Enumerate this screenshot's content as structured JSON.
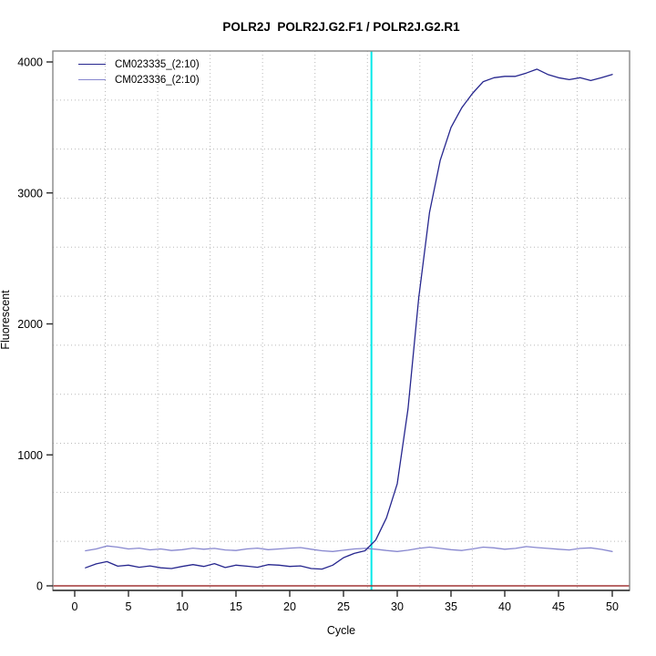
{
  "chart_data": {
    "type": "line",
    "title": "POLR2J  POLR2J.G2.F1 / POLR2J.G2.R1",
    "xlabel": "Cycle",
    "ylabel": "Fluorescent",
    "x_axis": {
      "min": 0,
      "max": 50,
      "ticks": [
        0,
        5,
        10,
        15,
        20,
        25,
        30,
        35,
        40,
        45,
        50
      ]
    },
    "y_axis": {
      "min": 0,
      "max": 4000,
      "ticks": [
        0,
        1000,
        2000,
        3000,
        4000
      ]
    },
    "grid": {
      "style": "dotted",
      "color": "#b9b9b9",
      "x_divisions": 11,
      "y_divisions": 11
    },
    "x": [
      1,
      2,
      3,
      4,
      5,
      6,
      7,
      8,
      9,
      10,
      11,
      12,
      13,
      14,
      15,
      16,
      17,
      18,
      19,
      20,
      21,
      22,
      23,
      24,
      25,
      26,
      27,
      28,
      29,
      30,
      31,
      32,
      33,
      34,
      35,
      36,
      37,
      38,
      39,
      40,
      41,
      42,
      43,
      44,
      45,
      46,
      47,
      48,
      49,
      50
    ],
    "series": [
      {
        "name": "CM023335_(2:10)",
        "color": "#26268e",
        "values": [
          138,
          168,
          185,
          150,
          158,
          142,
          152,
          138,
          132,
          148,
          162,
          148,
          170,
          140,
          158,
          150,
          142,
          162,
          158,
          148,
          152,
          132,
          128,
          158,
          215,
          248,
          268,
          350,
          520,
          780,
          1350,
          2200,
          2850,
          3250,
          3500,
          3650,
          3760,
          3850,
          3880,
          3890,
          3890,
          3915,
          3945,
          3905,
          3880,
          3865,
          3880,
          3858,
          3880,
          3905
        ]
      },
      {
        "name": "CM023336_(2:10)",
        "color": "#8787cf",
        "values": [
          268,
          282,
          305,
          296,
          282,
          288,
          275,
          282,
          270,
          276,
          288,
          280,
          286,
          274,
          270,
          282,
          288,
          276,
          282,
          288,
          292,
          280,
          268,
          262,
          272,
          282,
          286,
          280,
          270,
          262,
          272,
          286,
          296,
          286,
          276,
          270,
          282,
          296,
          290,
          280,
          286,
          300,
          292,
          286,
          280,
          274,
          286,
          290,
          278,
          262
        ]
      }
    ],
    "threshold_cycle_line": {
      "cycle": 27.6,
      "color": "#00e8e8"
    },
    "zero_line": {
      "y": 0,
      "color": "#a23535"
    },
    "axis_box_color": "#878787",
    "axis_line_color": "#2b2b2b",
    "legend_position": "top-left"
  }
}
